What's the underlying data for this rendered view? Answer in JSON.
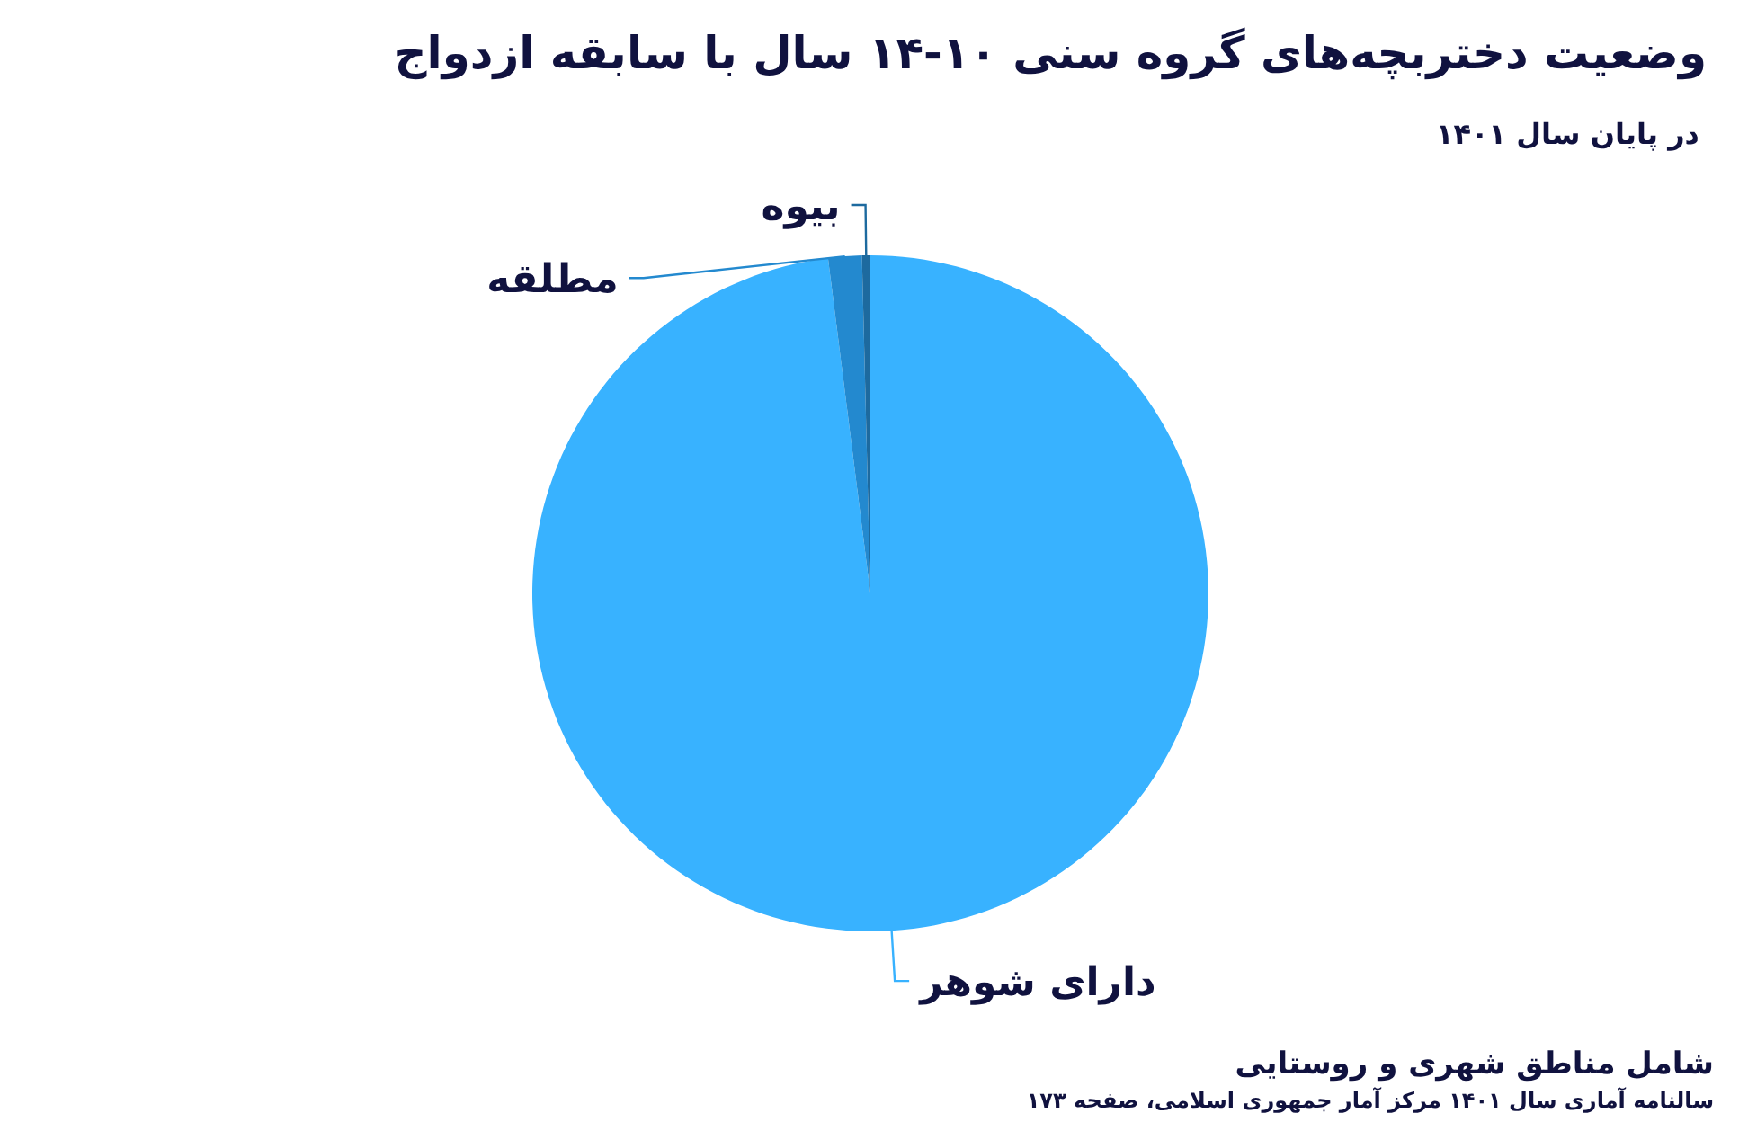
{
  "chart_data": {
    "type": "pie",
    "title": "وضعیت دختربچه‌های گروه سنی ۱۰-۱۴ سال با سابقه ازدواج",
    "subtitle": "در پایان سال ۱۴۰۱",
    "categories": [
      "دارای شوهر",
      "مطلقه",
      "بیوه"
    ],
    "values": [
      98.0,
      1.6,
      0.4
    ],
    "colors": [
      "#38b2ff",
      "#2389cf",
      "#1d6a9f"
    ],
    "annotations": [
      "شامل مناطق شهری و روستایی",
      "سالنامه آماری سال ۱۴۰۱ مرکز آمار جمهوری اسلامی، صفحه ۱۷۳"
    ]
  }
}
